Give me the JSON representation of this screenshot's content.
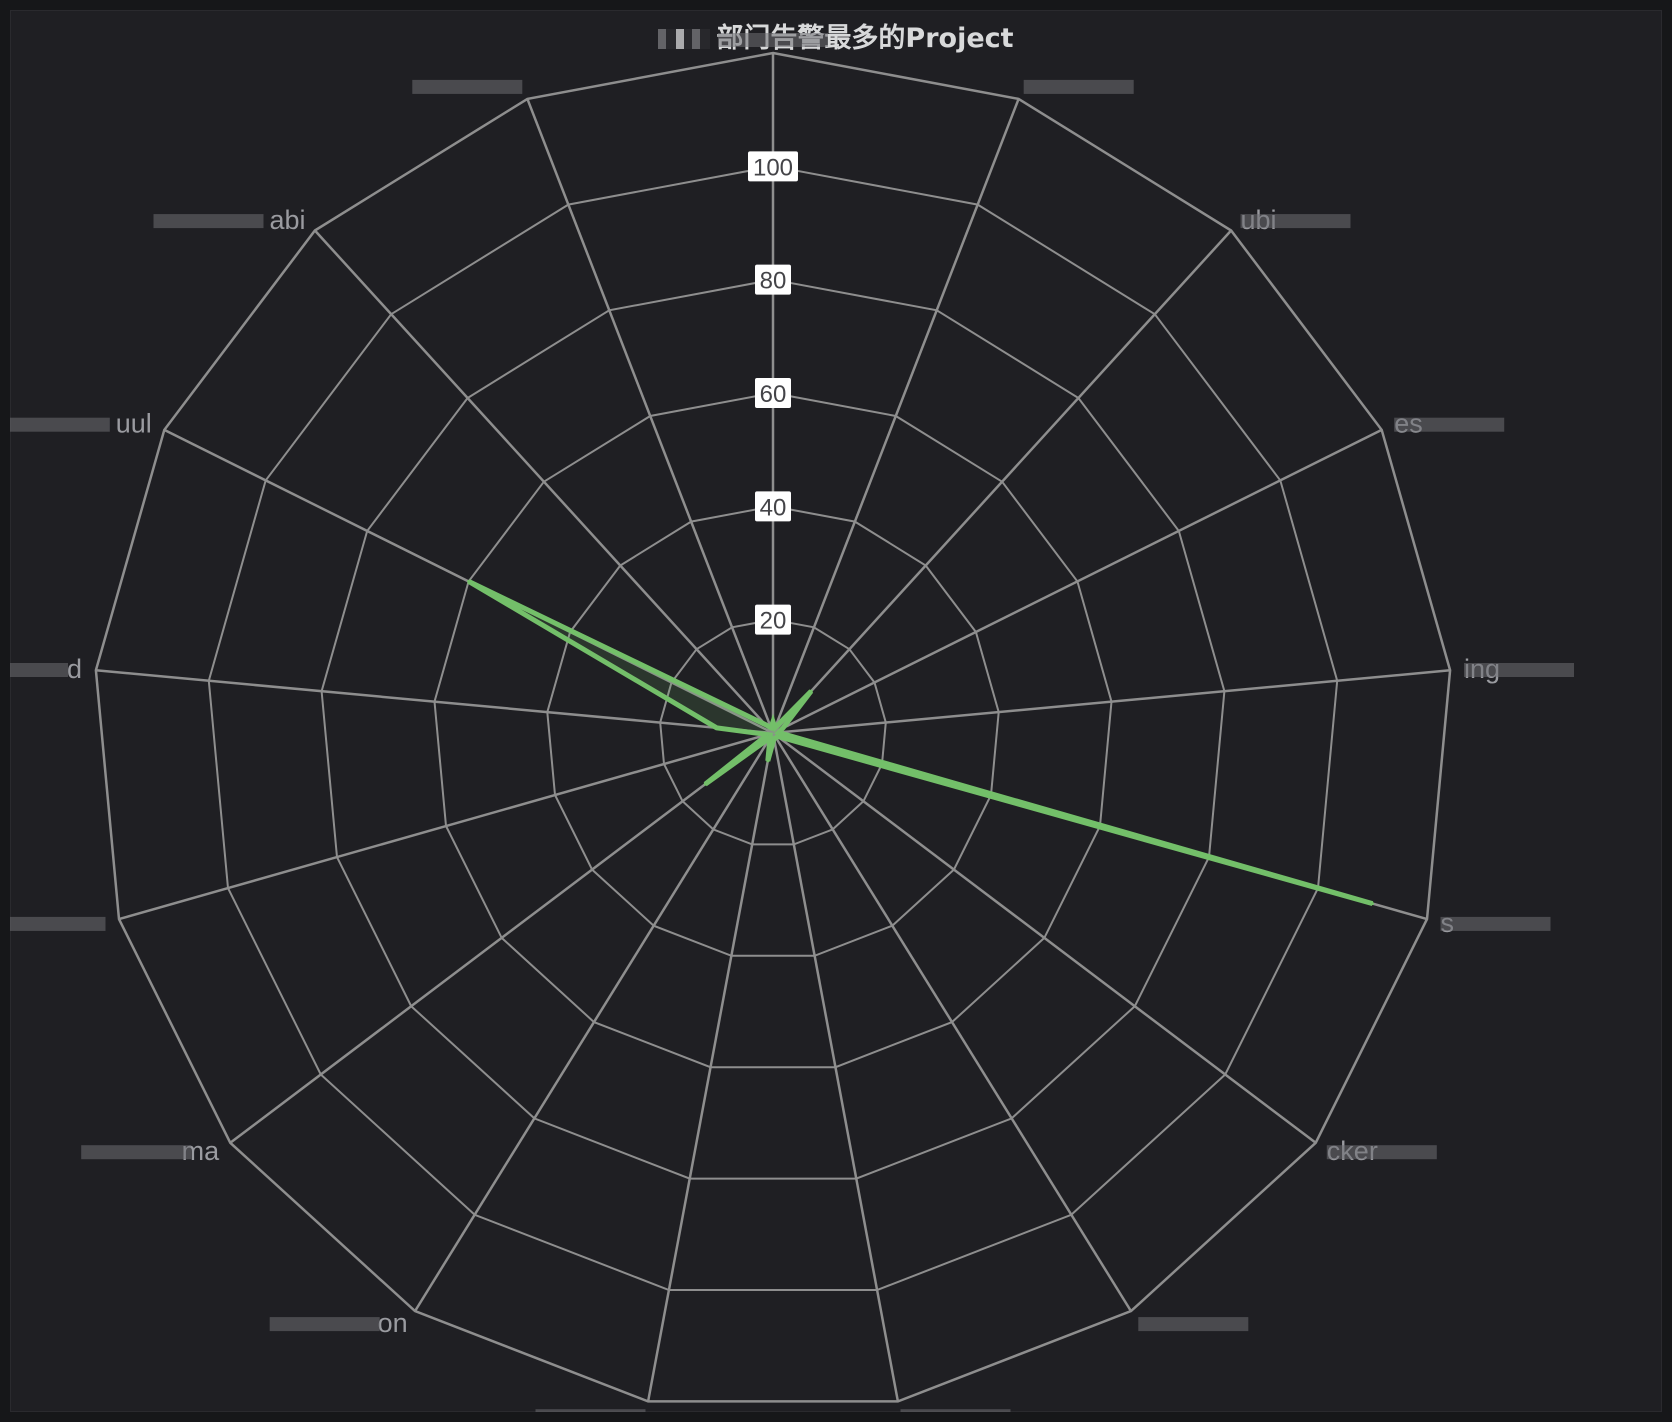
{
  "panel": {
    "title": "部门告警最多的Project"
  },
  "chart_data": {
    "type": "radar",
    "title": "部门告警最多的Project",
    "axes": [
      "",
      "",
      "ubi",
      "es",
      "ing",
      "s",
      "cker",
      "",
      "",
      "",
      "on",
      "ma",
      "",
      "d",
      "uul",
      "abi",
      ""
    ],
    "ticks": [
      20,
      40,
      60,
      80,
      100
    ],
    "rlim": [
      0,
      120
    ],
    "series": [
      {
        "values": [
          2,
          1,
          10,
          2,
          1,
          110,
          1,
          1,
          1,
          5,
          1,
          15,
          1,
          10,
          60,
          2,
          1
        ]
      }
    ],
    "colors": {
      "series": "#73bf69",
      "grid": "#8e8e8e",
      "axis_label": "#9a9ba0",
      "tick_box": "#ffffff",
      "background": "#1f1f23"
    },
    "grid": true
  }
}
